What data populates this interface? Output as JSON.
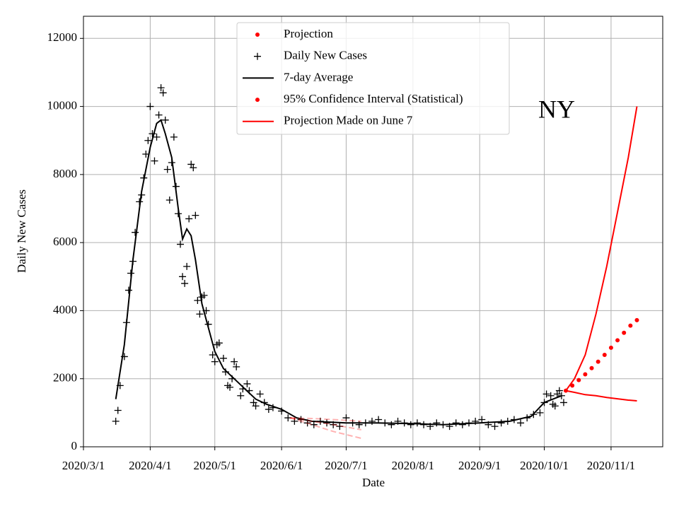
{
  "chart_data": {
    "type": "scatter",
    "xlabel": "Date",
    "ylabel": "Daily New Cases",
    "annotation": "NY",
    "xlim": [
      "2020-03-01",
      "2020-11-25"
    ],
    "ylim": [
      0,
      12650
    ],
    "xticks": [
      {
        "value": "2020-03-01",
        "label": "2020/3/1"
      },
      {
        "value": "2020-04-01",
        "label": "2020/4/1"
      },
      {
        "value": "2020-05-01",
        "label": "2020/5/1"
      },
      {
        "value": "2020-06-01",
        "label": "2020/6/1"
      },
      {
        "value": "2020-07-01",
        "label": "2020/7/1"
      },
      {
        "value": "2020-08-01",
        "label": "2020/8/1"
      },
      {
        "value": "2020-09-01",
        "label": "2020/9/1"
      },
      {
        "value": "2020-10-01",
        "label": "2020/10/1"
      },
      {
        "value": "2020-11-01",
        "label": "2020/11/1"
      }
    ],
    "yticks": [
      0,
      2000,
      4000,
      6000,
      8000,
      10000,
      12000
    ],
    "grid": true,
    "legend": "upper center",
    "series": [
      {
        "name": "Projection",
        "color": "#ff0000",
        "marker": "dot",
        "x": [
          "2020-10-11",
          "2020-10-14",
          "2020-10-17",
          "2020-10-20",
          "2020-10-23",
          "2020-10-26",
          "2020-10-29",
          "2020-11-01",
          "2020-11-04",
          "2020-11-07",
          "2020-11-10",
          "2020-11-13"
        ],
        "values": [
          1650,
          1800,
          1960,
          2130,
          2310,
          2500,
          2700,
          2910,
          3130,
          3350,
          3560,
          3720
        ]
      },
      {
        "name": "Daily New Cases",
        "color": "#000000",
        "marker": "plus",
        "x": [
          "2020-03-16",
          "2020-03-17",
          "2020-03-18",
          "2020-03-20",
          "2020-03-21",
          "2020-03-22",
          "2020-03-23",
          "2020-03-24",
          "2020-03-25",
          "2020-03-27",
          "2020-03-28",
          "2020-03-29",
          "2020-03-30",
          "2020-03-31",
          "2020-04-01",
          "2020-04-02",
          "2020-04-03",
          "2020-04-04",
          "2020-04-05",
          "2020-04-06",
          "2020-04-07",
          "2020-04-08",
          "2020-04-09",
          "2020-04-10",
          "2020-04-11",
          "2020-04-12",
          "2020-04-13",
          "2020-04-14",
          "2020-04-15",
          "2020-04-16",
          "2020-04-17",
          "2020-04-18",
          "2020-04-19",
          "2020-04-20",
          "2020-04-21",
          "2020-04-22",
          "2020-04-23",
          "2020-04-24",
          "2020-04-25",
          "2020-04-26",
          "2020-04-27",
          "2020-04-28",
          "2020-04-30",
          "2020-05-01",
          "2020-05-02",
          "2020-05-03",
          "2020-05-05",
          "2020-05-06",
          "2020-05-07",
          "2020-05-08",
          "2020-05-09",
          "2020-05-10",
          "2020-05-11",
          "2020-05-13",
          "2020-05-14",
          "2020-05-16",
          "2020-05-17",
          "2020-05-19",
          "2020-05-20",
          "2020-05-22",
          "2020-05-24",
          "2020-05-26",
          "2020-05-28",
          "2020-06-01",
          "2020-06-04",
          "2020-06-07",
          "2020-06-10",
          "2020-06-13",
          "2020-06-16",
          "2020-06-19",
          "2020-06-22",
          "2020-06-25",
          "2020-06-28",
          "2020-07-01",
          "2020-07-04",
          "2020-07-07",
          "2020-07-10",
          "2020-07-13",
          "2020-07-16",
          "2020-07-19",
          "2020-07-22",
          "2020-07-25",
          "2020-07-28",
          "2020-07-31",
          "2020-08-03",
          "2020-08-06",
          "2020-08-09",
          "2020-08-12",
          "2020-08-15",
          "2020-08-18",
          "2020-08-21",
          "2020-08-24",
          "2020-08-27",
          "2020-08-30",
          "2020-09-02",
          "2020-09-05",
          "2020-09-08",
          "2020-09-11",
          "2020-09-14",
          "2020-09-17",
          "2020-09-20",
          "2020-09-23",
          "2020-09-26",
          "2020-09-29",
          "2020-10-01",
          "2020-10-02",
          "2020-10-04",
          "2020-10-05",
          "2020-10-06",
          "2020-10-07",
          "2020-10-08",
          "2020-10-09",
          "2020-10-10"
        ],
        "values": [
          750,
          1070,
          1800,
          2650,
          3650,
          4600,
          5100,
          5450,
          6300,
          7200,
          7400,
          7900,
          8600,
          9000,
          10000,
          9200,
          8400,
          9100,
          9750,
          10550,
          10400,
          9600,
          8150,
          7250,
          8350,
          9100,
          7650,
          6850,
          5950,
          5000,
          4800,
          5300,
          6700,
          8300,
          8200,
          6800,
          4300,
          3900,
          4400,
          4450,
          4000,
          3600,
          2700,
          2500,
          3000,
          3050,
          2600,
          2200,
          1800,
          1750,
          2000,
          2500,
          2350,
          1500,
          1700,
          1850,
          1650,
          1300,
          1200,
          1550,
          1300,
          1100,
          1150,
          1050,
          850,
          750,
          800,
          700,
          650,
          750,
          700,
          650,
          600,
          850,
          700,
          650,
          700,
          750,
          800,
          700,
          650,
          750,
          700,
          650,
          700,
          650,
          600,
          700,
          650,
          600,
          700,
          650,
          700,
          750,
          800,
          650,
          600,
          700,
          750,
          800,
          700,
          850,
          950,
          1000,
          1300,
          1550,
          1500,
          1250,
          1200,
          1550,
          1650,
          1500,
          1300
        ]
      },
      {
        "name": "7-day Average",
        "color": "#000000",
        "marker": "line",
        "x": [
          "2020-03-16",
          "2020-03-20",
          "2020-03-24",
          "2020-03-28",
          "2020-04-01",
          "2020-04-04",
          "2020-04-06",
          "2020-04-08",
          "2020-04-11",
          "2020-04-14",
          "2020-04-16",
          "2020-04-18",
          "2020-04-20",
          "2020-04-22",
          "2020-04-25",
          "2020-04-28",
          "2020-05-01",
          "2020-05-05",
          "2020-05-10",
          "2020-05-15",
          "2020-05-20",
          "2020-05-25",
          "2020-06-01",
          "2020-06-08",
          "2020-06-15",
          "2020-07-01",
          "2020-07-15",
          "2020-08-01",
          "2020-08-15",
          "2020-09-01",
          "2020-09-15",
          "2020-09-25",
          "2020-10-01",
          "2020-10-05",
          "2020-10-09"
        ],
        "values": [
          1400,
          3000,
          5500,
          7500,
          8800,
          9500,
          9600,
          9200,
          8500,
          7000,
          6100,
          6400,
          6200,
          5500,
          4200,
          3500,
          2800,
          2300,
          2000,
          1700,
          1400,
          1250,
          1100,
          850,
          750,
          700,
          700,
          680,
          650,
          700,
          750,
          900,
          1300,
          1400,
          1500
        ]
      },
      {
        "name": "95% Confidence Interval (Statistical)",
        "color": "#ff0000",
        "marker": "dot",
        "x": [
          "2020-10-11",
          "2020-10-15",
          "2020-10-20",
          "2020-10-25",
          "2020-10-30",
          "2020-11-04",
          "2020-11-09",
          "2020-11-13"
        ],
        "values": [
          1650,
          2000,
          2700,
          3900,
          5300,
          6900,
          8500,
          10000
        ],
        "lower": [
          1650,
          1600,
          1530,
          1500,
          1450,
          1410,
          1370,
          1350
        ]
      },
      {
        "name": "Projection Made on June 7",
        "color": "#ff0000",
        "marker": "line",
        "x": [
          "2020-06-05",
          "2020-06-15",
          "2020-06-25",
          "2020-07-08"
        ],
        "values": [
          850,
          750,
          650,
          500
        ],
        "upper": [
          850,
          830,
          800,
          750
        ],
        "lower": [
          850,
          650,
          450,
          250
        ]
      }
    ]
  }
}
